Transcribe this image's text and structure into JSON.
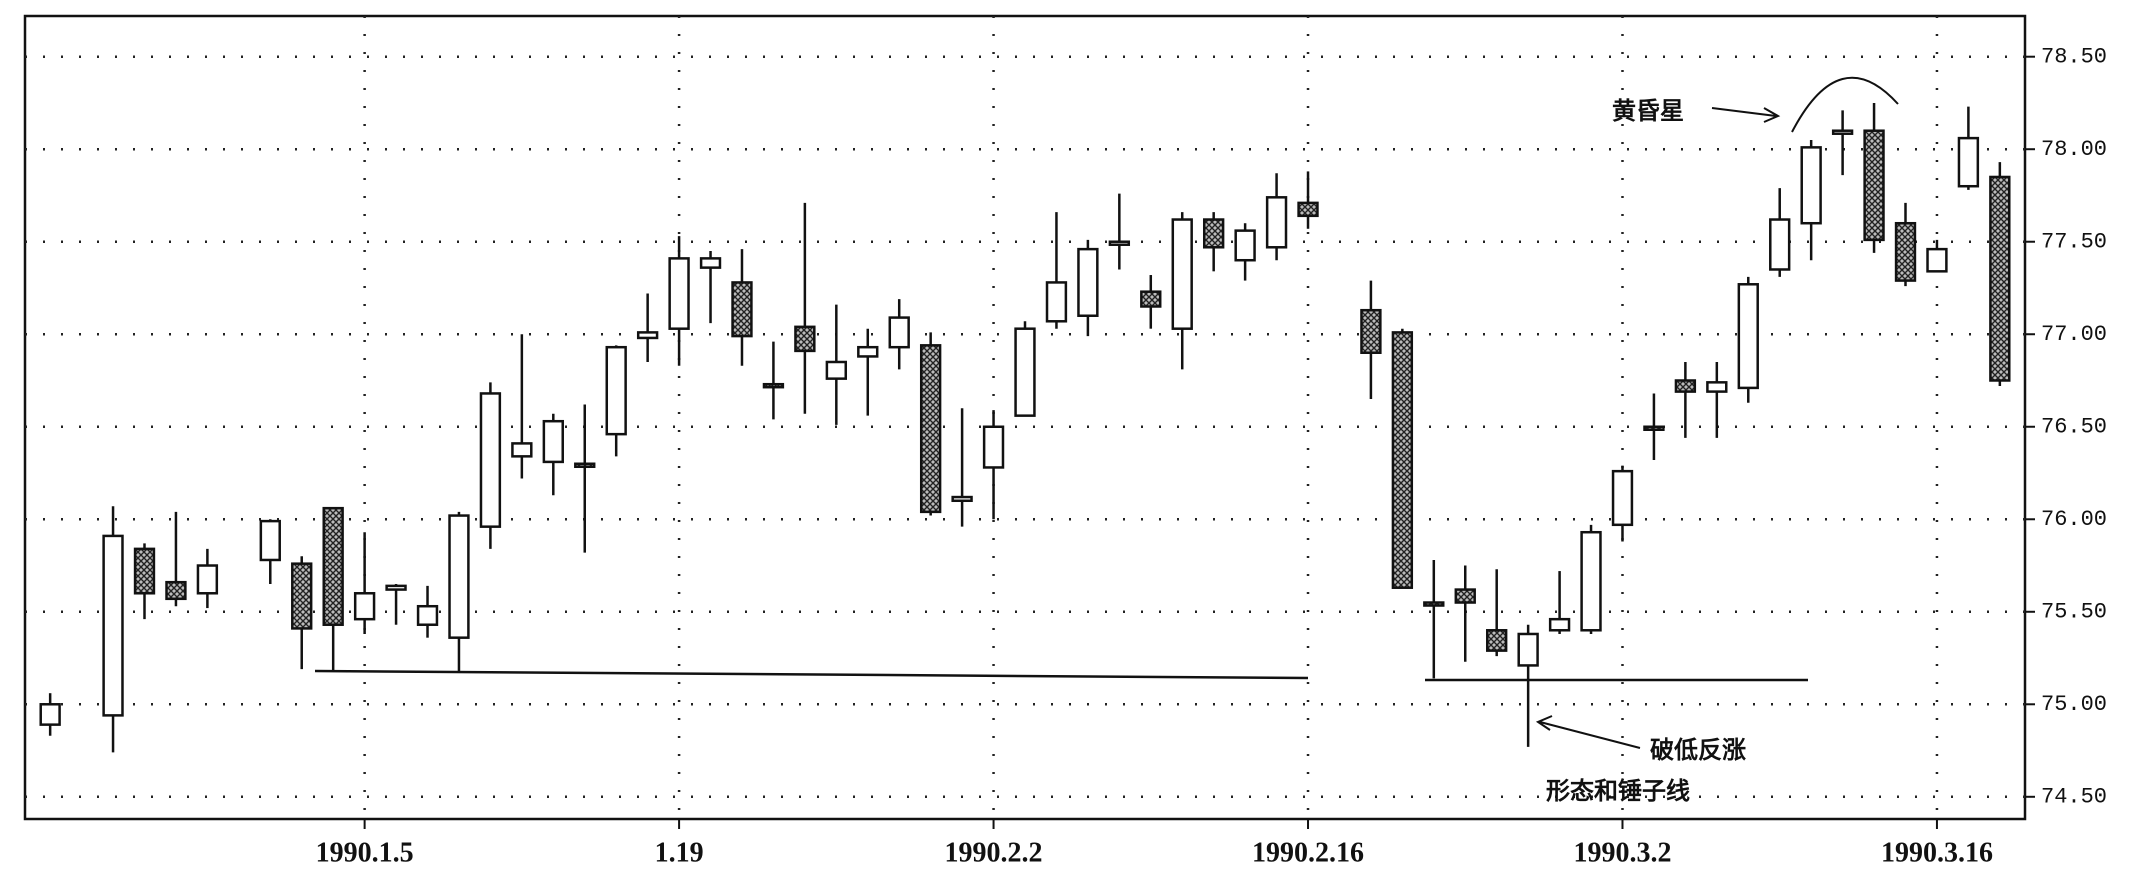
{
  "chart_data": {
    "type": "candlestick",
    "categories": [
      null,
      null,
      null,
      null,
      null,
      null,
      null,
      null,
      null,
      null,
      "1990.1.5",
      null,
      null,
      null,
      null,
      null,
      null,
      null,
      null,
      null,
      "1.19",
      null,
      null,
      null,
      null,
      null,
      null,
      null,
      null,
      null,
      "1990.2.2",
      null,
      null,
      null,
      null,
      null,
      null,
      null,
      null,
      null,
      "1990.2.16",
      null,
      null,
      null,
      null,
      null,
      null,
      null,
      null,
      null,
      "1990.3.2",
      null,
      null,
      null,
      null,
      null,
      null,
      null,
      null,
      null,
      "1990.3.16",
      null,
      null
    ],
    "open": [
      74.89,
      null,
      74.94,
      75.84,
      75.66,
      75.6,
      null,
      75.78,
      75.76,
      76.06,
      75.46,
      75.62,
      75.43,
      75.36,
      75.96,
      76.34,
      76.31,
      76.3,
      76.46,
      76.98,
      77.03,
      77.36,
      77.28,
      76.73,
      77.04,
      76.76,
      76.88,
      76.93,
      76.94,
      76.1,
      76.28,
      76.56,
      77.07,
      77.1,
      77.49,
      77.23,
      77.03,
      77.62,
      77.4,
      77.47,
      77.71,
      null,
      77.13,
      77.01,
      75.55,
      75.62,
      75.4,
      75.21,
      75.4,
      75.4,
      75.97,
      76.5,
      76.75,
      76.69,
      76.71,
      77.35,
      77.6,
      78.09,
      78.1,
      77.6,
      77.34,
      77.8,
      77.85
    ],
    "high": [
      75.06,
      null,
      76.07,
      75.87,
      76.04,
      75.84,
      null,
      76.0,
      75.8,
      76.06,
      75.93,
      75.65,
      75.64,
      76.04,
      76.74,
      77.0,
      76.57,
      76.62,
      76.94,
      77.22,
      77.53,
      77.45,
      77.46,
      76.96,
      77.71,
      77.16,
      77.03,
      77.19,
      77.01,
      76.6,
      76.59,
      77.07,
      77.66,
      77.51,
      77.76,
      77.32,
      77.66,
      77.66,
      77.6,
      77.87,
      77.88,
      null,
      77.29,
      77.03,
      75.78,
      75.75,
      75.73,
      75.43,
      75.72,
      75.97,
      76.29,
      76.68,
      76.85,
      76.85,
      77.31,
      77.79,
      78.05,
      78.21,
      78.25,
      77.71,
      77.51,
      78.23,
      77.93
    ],
    "low": [
      74.83,
      null,
      74.74,
      75.46,
      75.53,
      75.52,
      null,
      75.65,
      75.19,
      75.18,
      75.38,
      75.43,
      75.36,
      75.18,
      75.84,
      76.22,
      76.13,
      75.82,
      76.34,
      76.85,
      76.83,
      77.06,
      76.83,
      76.54,
      76.57,
      76.51,
      76.56,
      76.81,
      76.02,
      75.96,
      76.0,
      76.56,
      77.03,
      76.99,
      77.35,
      77.03,
      76.81,
      77.34,
      77.29,
      77.4,
      77.57,
      null,
      76.65,
      75.63,
      75.14,
      75.23,
      75.26,
      74.77,
      75.38,
      75.38,
      75.88,
      76.32,
      76.44,
      76.44,
      76.63,
      77.31,
      77.4,
      77.86,
      77.44,
      77.26,
      77.34,
      77.78,
      76.72
    ],
    "close": [
      75.0,
      null,
      75.91,
      75.6,
      75.57,
      75.75,
      null,
      75.99,
      75.41,
      75.43,
      75.6,
      75.64,
      75.53,
      76.02,
      76.68,
      76.41,
      76.53,
      76.29,
      76.93,
      77.01,
      77.41,
      77.41,
      76.99,
      76.72,
      76.91,
      76.85,
      76.93,
      77.09,
      76.04,
      76.12,
      76.5,
      77.03,
      77.28,
      77.46,
      77.5,
      77.15,
      77.62,
      77.47,
      77.56,
      77.74,
      77.64,
      null,
      76.9,
      75.63,
      75.54,
      75.55,
      75.29,
      75.38,
      75.46,
      75.93,
      76.26,
      76.49,
      76.69,
      76.74,
      77.27,
      77.62,
      78.01,
      78.1,
      77.51,
      77.29,
      77.46,
      78.06,
      76.75
    ],
    "ylim": [
      74.38,
      78.72
    ],
    "yticks": [
      {
        "value": 74.5,
        "label": "74.50"
      },
      {
        "value": 75,
        "label": "75.00"
      },
      {
        "value": 75.5,
        "label": "75.50"
      },
      {
        "value": 76,
        "label": "76.00"
      },
      {
        "value": 76.5,
        "label": "76.50"
      },
      {
        "value": 77,
        "label": "77.00"
      },
      {
        "value": 77.5,
        "label": "77.50"
      },
      {
        "value": 78,
        "label": "78.00"
      },
      {
        "value": 78.5,
        "label": "78.50"
      }
    ],
    "grid": true,
    "annotations": [
      {
        "text": "黄昏星"
      },
      {
        "text": "破低反涨"
      },
      {
        "text": "形态和锤子线"
      }
    ]
  }
}
